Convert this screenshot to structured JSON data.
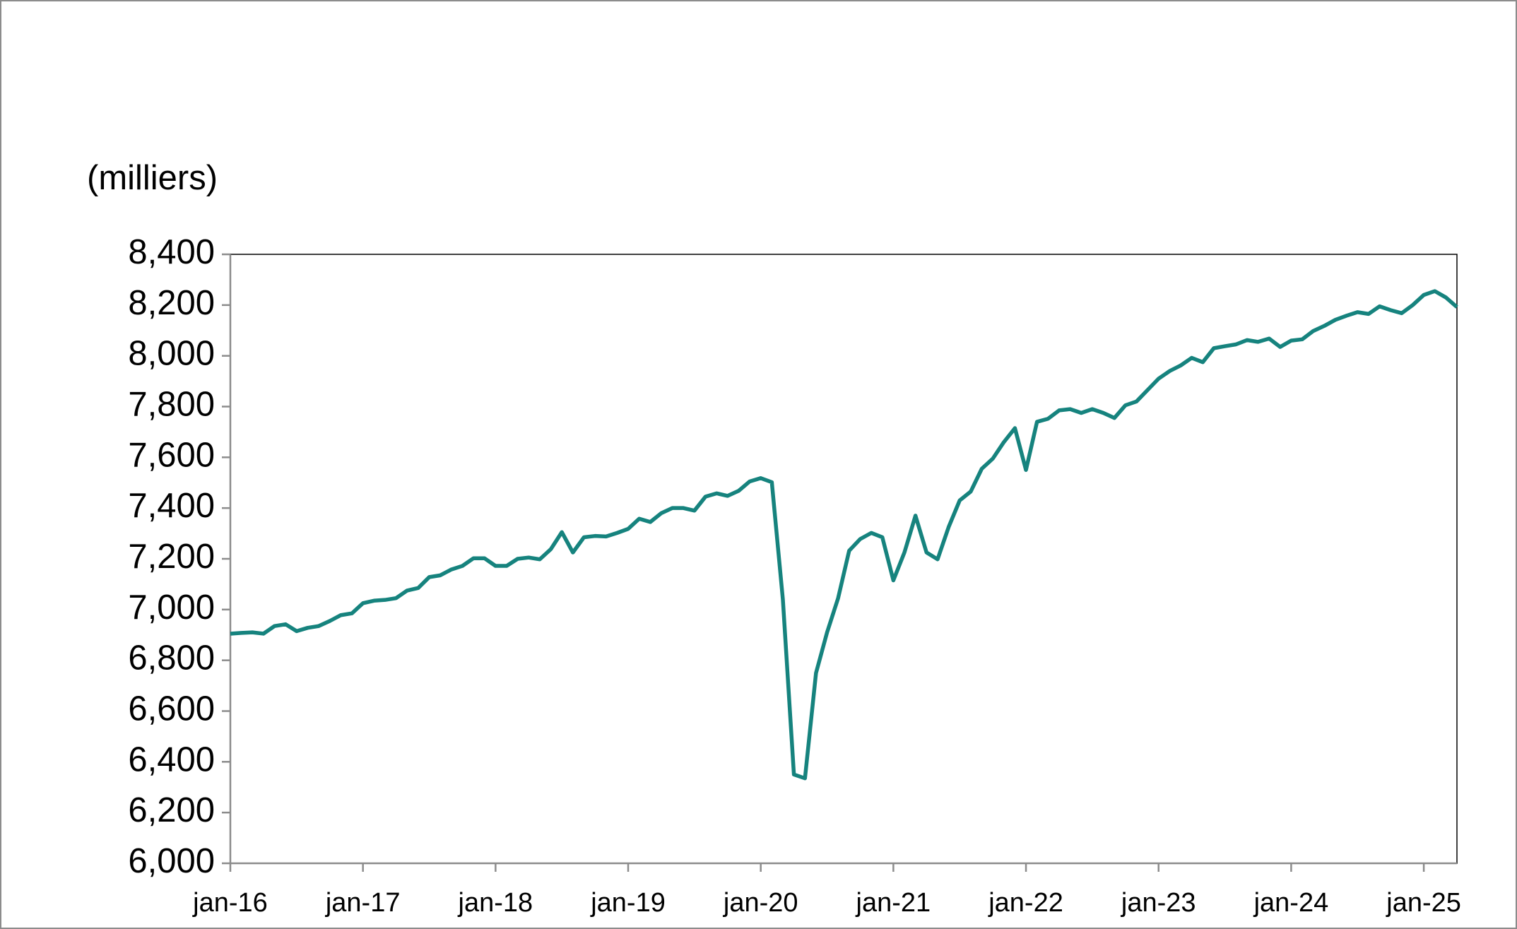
{
  "chart_data": {
    "type": "line",
    "y_label": "(milliers)",
    "categories": [
      "jan-16",
      null,
      null,
      null,
      null,
      null,
      null,
      null,
      null,
      null,
      null,
      null,
      "jan-17",
      null,
      null,
      null,
      null,
      null,
      null,
      null,
      null,
      null,
      null,
      null,
      "jan-18",
      null,
      null,
      null,
      null,
      null,
      null,
      null,
      null,
      null,
      null,
      null,
      "jan-19",
      null,
      null,
      null,
      null,
      null,
      null,
      null,
      null,
      null,
      null,
      null,
      "jan-20",
      null,
      null,
      null,
      null,
      null,
      null,
      null,
      null,
      null,
      null,
      null,
      "jan-21",
      null,
      null,
      null,
      null,
      null,
      null,
      null,
      null,
      null,
      null,
      null,
      "jan-22",
      null,
      null,
      null,
      null,
      null,
      null,
      null,
      null,
      null,
      null,
      null,
      "jan-23",
      null,
      null,
      null,
      null,
      null,
      null,
      null,
      null,
      null,
      null,
      null,
      "jan-24",
      null,
      null,
      null,
      null,
      null,
      null,
      null,
      null,
      null,
      null,
      null,
      "jan-25",
      null,
      null,
      null
    ],
    "color": "#16837e",
    "values": [
      6905,
      6908,
      6910,
      6905,
      6935,
      6942,
      6915,
      6928,
      6935,
      6955,
      6978,
      6985,
      7025,
      7035,
      7038,
      7045,
      7075,
      7085,
      7128,
      7135,
      7158,
      7172,
      7202,
      7202,
      7172,
      7172,
      7200,
      7205,
      7198,
      7238,
      7305,
      7225,
      7285,
      7290,
      7288,
      7302,
      7318,
      7358,
      7345,
      7380,
      7400,
      7400,
      7390,
      7445,
      7458,
      7448,
      7468,
      7505,
      7518,
      7502,
      7040,
      6350,
      6335,
      6750,
      6910,
      7045,
      7232,
      7278,
      7302,
      7285,
      7115,
      7225,
      7370,
      7225,
      7198,
      7325,
      7430,
      7465,
      7555,
      7595,
      7660,
      7715,
      7550,
      7740,
      7752,
      7785,
      7790,
      7775,
      7790,
      7775,
      7755,
      7805,
      7820,
      7865,
      7910,
      7940,
      7962,
      7992,
      7975,
      8030,
      8038,
      8045,
      8062,
      8055,
      8068,
      8035,
      8060,
      8065,
      8098,
      8118,
      8142,
      8158,
      8172,
      8165,
      8195,
      8180,
      8168,
      8200,
      8240,
      8255,
      8230,
      8192
    ],
    "ylim": [
      6000,
      8400
    ],
    "yticks": [
      {
        "value": 6000,
        "label": "6,000"
      },
      {
        "value": 6200,
        "label": "6,200"
      },
      {
        "value": 6400,
        "label": "6,400"
      },
      {
        "value": 6600,
        "label": "6,600"
      },
      {
        "value": 6800,
        "label": "6,800"
      },
      {
        "value": 7000,
        "label": "7,000"
      },
      {
        "value": 7200,
        "label": "7,200"
      },
      {
        "value": 7400,
        "label": "7,400"
      },
      {
        "value": 7600,
        "label": "7,600"
      },
      {
        "value": 7800,
        "label": "7,800"
      },
      {
        "value": 8000,
        "label": "8,000"
      },
      {
        "value": 8200,
        "label": "8,200"
      },
      {
        "value": 8400,
        "label": "8,400"
      }
    ],
    "grid": false
  }
}
